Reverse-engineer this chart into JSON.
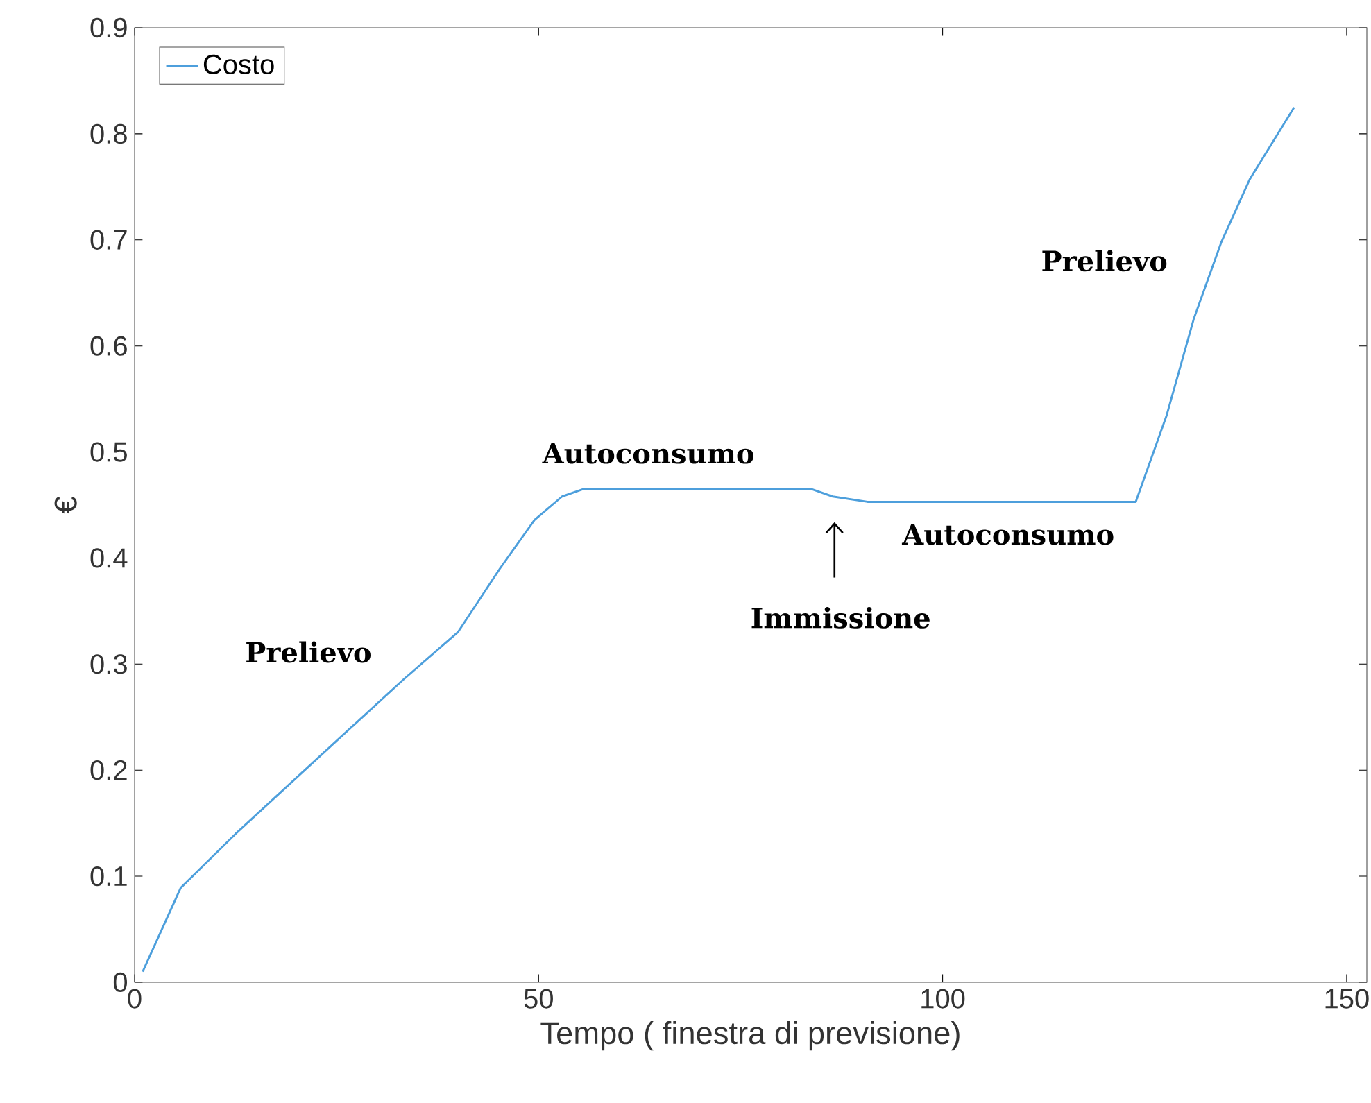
{
  "chart_data": {
    "type": "line",
    "xlabel": "Tempo ( finestra di previsione)",
    "ylabel": "€",
    "xlim": [
      0,
      152.5
    ],
    "ylim": [
      0,
      0.9
    ],
    "xticks": [
      0,
      50,
      100,
      150
    ],
    "yticks": [
      0,
      0.1,
      0.2,
      0.3,
      0.4,
      0.5,
      0.6,
      0.7,
      0.8,
      0.9
    ],
    "legend": "top left",
    "grid": false,
    "series": [
      {
        "name": "Costo",
        "color": "#4d9fdc",
        "x": [
          1.0,
          5.7,
          12.5,
          22.9,
          33.2,
          40.0,
          45.2,
          49.5,
          52.9,
          55.5,
          83.8,
          86.4,
          90.7,
          123.9,
          127.7,
          131.1,
          134.5,
          138.0,
          143.5
        ],
        "values": [
          0.01,
          0.089,
          0.14,
          0.213,
          0.285,
          0.33,
          0.39,
          0.436,
          0.458,
          0.465,
          0.465,
          0.458,
          0.453,
          0.453,
          0.534,
          0.626,
          0.698,
          0.757,
          0.825
        ]
      }
    ],
    "annotations": [
      "Prelievo",
      "Autoconsumo",
      "Immissione",
      "Autoconsumo",
      "Prelievo"
    ]
  }
}
